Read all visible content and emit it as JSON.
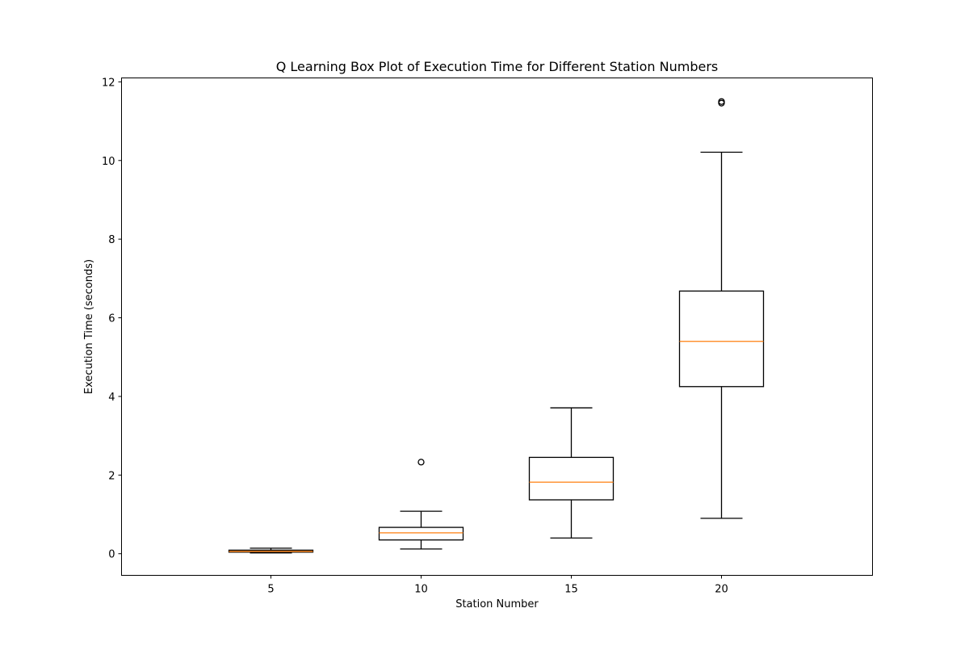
{
  "chart_data": {
    "type": "boxplot",
    "title": "Q Learning Box Plot of Execution Time for Different Station Numbers",
    "xlabel": "Station Number",
    "ylabel": "Execution Time (seconds)",
    "ylim": [
      -0.55,
      12.1
    ],
    "yticks": [
      "0",
      "2",
      "4",
      "6",
      "8",
      "10",
      "12"
    ],
    "grid": false,
    "colors": {
      "box": "#000000",
      "median": "#ff7f0e",
      "background": "#ffffff"
    },
    "categories": [
      "5",
      "10",
      "15",
      "20"
    ],
    "boxes": [
      {
        "label": "5",
        "whisker_low": 0.02,
        "q1": 0.04,
        "median": 0.06,
        "q3": 0.09,
        "whisker_high": 0.14,
        "outliers": []
      },
      {
        "label": "10",
        "whisker_low": 0.12,
        "q1": 0.35,
        "median": 0.53,
        "q3": 0.67,
        "whisker_high": 1.08,
        "outliers": [
          2.33
        ]
      },
      {
        "label": "15",
        "whisker_low": 0.4,
        "q1": 1.37,
        "median": 1.82,
        "q3": 2.45,
        "whisker_high": 3.71,
        "outliers": []
      },
      {
        "label": "20",
        "whisker_low": 0.9,
        "q1": 4.25,
        "median": 5.4,
        "q3": 6.68,
        "whisker_high": 10.21,
        "outliers": [
          11.46,
          11.5
        ]
      }
    ]
  }
}
